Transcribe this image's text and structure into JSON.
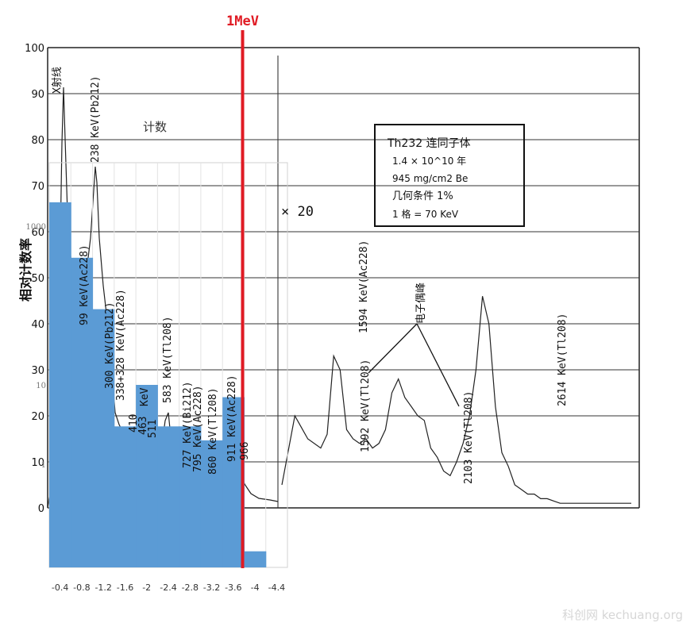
{
  "marker_label": "1MeV",
  "y_axis_label": "相对计数率",
  "count_label": "计数",
  "scale_label": "× 20",
  "watermark": "科创网 kechuang.org",
  "info_box": {
    "line1": "Th232 连同子体",
    "line2": "1.4 × 10^10 年",
    "line3": "945 mg/cm2 Be",
    "line4": "几何条件 1%",
    "line5": "1 格 = 70 KeV"
  },
  "peak_labels": [
    "X射线",
    "238 KeV(Pb212)",
    "99 KeV(Ac228)",
    "300 KeV(Pb212)",
    "338+328 KeV(Ac228)",
    "410",
    "463",
    "511",
    "KeV",
    "583 KeV(Tl208)",
    "727 KeV(Bi212)",
    "795 KeV(Ac228)",
    "860 KeV(Tl208)",
    "911 KeV(Ac228)",
    "966",
    "1594 KeV(Ac228)",
    "1592 KeV(Tl208)",
    "电子偶峰",
    "2103 KeV(Tl208)",
    "2614 KeV(Tl208)"
  ],
  "chart_data": {
    "type": "bar",
    "categories": [
      "-0.4",
      "-0.8",
      "-1.2",
      "-1.6",
      "-2",
      "-2.4",
      "-2.8",
      "-3.2",
      "-3.6",
      "-4",
      "-4.4"
    ],
    "values": [
      2000,
      400,
      90,
      3,
      10,
      3,
      3,
      2,
      7,
      0.08,
      0
    ],
    "yscale": "log",
    "y_ticks": [
      "1000",
      "10",
      "1"
    ],
    "bar_color": "#5b9bd5",
    "marker_color": "#e01b24",
    "marker_position": "-4"
  },
  "spectrum_chart": {
    "type": "line",
    "x": [
      0,
      10,
      20,
      30,
      35,
      40,
      45,
      50,
      55,
      60,
      65,
      70,
      75,
      80,
      85,
      90,
      95,
      100,
      105,
      110,
      115,
      120,
      125,
      130,
      135,
      140,
      145,
      150,
      155,
      160,
      165,
      170,
      175,
      180,
      185,
      190,
      195,
      200,
      205,
      210,
      215,
      220,
      225,
      230,
      235,
      240,
      245,
      250,
      255,
      260,
      265,
      270
    ],
    "y": [
      5,
      20,
      15,
      13,
      16,
      33,
      30,
      17,
      15,
      14,
      15,
      13,
      14,
      17,
      25,
      28,
      24,
      22,
      20,
      19,
      13,
      11,
      8,
      7,
      10,
      14,
      20,
      30,
      46,
      40,
      22,
      12,
      9,
      5,
      4,
      3,
      3,
      2,
      2,
      1.5,
      1,
      1,
      1,
      1,
      1,
      1,
      1,
      1,
      1,
      1,
      1,
      1
    ],
    "y_ticks": [
      "0",
      "10",
      "20",
      "30",
      "40",
      "50",
      "60",
      "70",
      "80",
      "90",
      "100"
    ],
    "ylim": [
      0,
      100
    ]
  }
}
